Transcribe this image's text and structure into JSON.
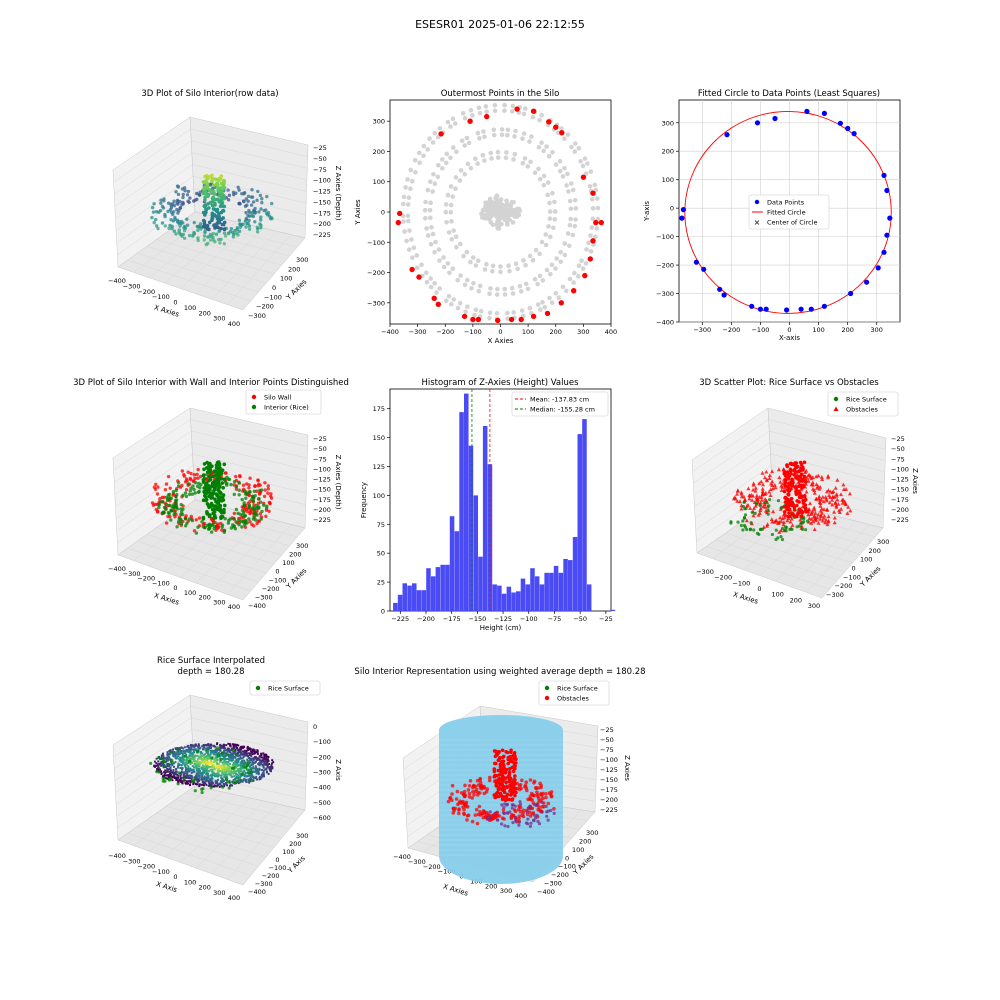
{
  "figure": {
    "title": "ESESR01 2025-01-06 22:12:55"
  },
  "colors": {
    "gray": "#d3d3d3",
    "red": "#ff0000",
    "blue": "#0000ff",
    "green": "#008000",
    "hist": "#4b4bf5",
    "sky": "#87ceeb",
    "pane": "#f2f2f2",
    "grid": "#dcdcdc"
  },
  "chart_data": [
    {
      "id": "p1",
      "type": "scatter3d",
      "title": "3D Plot of Silo Interior(row data)",
      "xlabel": "X Axies",
      "ylabel": "Y Axies",
      "zlabel": "Z Axies (Depth)",
      "xticks": [
        "−400",
        "−300",
        "−200",
        "−100",
        "0",
        "100",
        "200",
        "300",
        "400"
      ],
      "yticks": [
        "−300",
        "−200",
        "−100",
        "0",
        "100",
        "200",
        "300"
      ],
      "zticks": [
        "−25",
        "−50",
        "−75",
        "−100",
        "−125",
        "−150",
        "−175",
        "−200",
        "−225"
      ],
      "colormap": "viridis"
    },
    {
      "id": "p2",
      "type": "scatter",
      "title": "Outermost Points in the Silo",
      "xlabel": "X Axies",
      "ylabel": "Y Axies",
      "xlim": [
        -400,
        400
      ],
      "ylim": [
        -370,
        370
      ],
      "xticks": [
        -400,
        -300,
        -200,
        -100,
        0,
        100,
        200,
        300,
        400
      ],
      "yticks": [
        -300,
        -200,
        -100,
        0,
        100,
        200,
        300
      ],
      "series": [
        {
          "color": "#d3d3d3",
          "description_rings": [
            180,
            255,
            335
          ]
        },
        {
          "color": "#ff0000",
          "points": [
            [
              60,
              340
            ],
            [
              120,
              333
            ],
            [
              175,
              298
            ],
            [
              200,
              280
            ],
            [
              222,
              262
            ],
            [
              -215,
              258
            ],
            [
              -110,
              300
            ],
            [
              -50,
              315
            ],
            [
              300,
              115
            ],
            [
              335,
              62
            ],
            [
              345,
              -35
            ],
            [
              365,
              -35
            ],
            [
              335,
              -95
            ],
            [
              -365,
              -5
            ],
            [
              -370,
              -35
            ],
            [
              325,
              -155
            ],
            [
              -320,
              -190
            ],
            [
              -295,
              -215
            ],
            [
              305,
              -210
            ],
            [
              265,
              -260
            ],
            [
              -240,
              -285
            ],
            [
              220,
              -300
            ],
            [
              -225,
              -305
            ],
            [
              -130,
              -345
            ],
            [
              -100,
              -355
            ],
            [
              -80,
              -355
            ],
            [
              -10,
              -358
            ],
            [
              40,
              -355
            ],
            [
              75,
              -355
            ],
            [
              120,
              -345
            ],
            [
              170,
              -335
            ]
          ]
        }
      ]
    },
    {
      "id": "p3",
      "type": "scatter",
      "title": "Fitted Circle to Data Points (Least Squares)",
      "xlabel": "X-axis",
      "ylabel": "Y-axis",
      "xlim": [
        -380,
        380
      ],
      "ylim": [
        -400,
        380
      ],
      "xticks": [
        -300,
        -200,
        -100,
        0,
        100,
        200,
        300
      ],
      "yticks": [
        -400,
        -300,
        -200,
        -100,
        0,
        100,
        200,
        300
      ],
      "circle": {
        "cx": -5,
        "cy": -15,
        "r": 355
      },
      "legend": [
        "Data Points",
        "Fitted Circle",
        "Center of Circle"
      ],
      "points": [
        [
          60,
          340
        ],
        [
          120,
          333
        ],
        [
          175,
          298
        ],
        [
          200,
          280
        ],
        [
          222,
          262
        ],
        [
          -215,
          258
        ],
        [
          -110,
          300
        ],
        [
          -50,
          315
        ],
        [
          325,
          115
        ],
        [
          335,
          62
        ],
        [
          345,
          -35
        ],
        [
          -365,
          -5
        ],
        [
          -370,
          -35
        ],
        [
          335,
          -95
        ],
        [
          325,
          -155
        ],
        [
          -320,
          -190
        ],
        [
          -295,
          -215
        ],
        [
          305,
          -210
        ],
        [
          265,
          -260
        ],
        [
          -240,
          -285
        ],
        [
          210,
          -300
        ],
        [
          -225,
          -305
        ],
        [
          -130,
          -345
        ],
        [
          -100,
          -355
        ],
        [
          -80,
          -355
        ],
        [
          -10,
          -358
        ],
        [
          40,
          -355
        ],
        [
          75,
          -355
        ],
        [
          120,
          -345
        ]
      ]
    },
    {
      "id": "p4",
      "type": "scatter3d",
      "title": "3D Plot of Silo Interior with Wall and Interior Points Distinguished",
      "xlabel": "X Axies",
      "ylabel": "Y Axies",
      "zlabel": "Z Axies (Depth)",
      "xticks": [
        "−400",
        "−300",
        "−200",
        "−100",
        "0",
        "100",
        "200",
        "300",
        "400"
      ],
      "yticks": [
        "−400",
        "−300",
        "−200",
        "−100",
        "0",
        "100",
        "200",
        "300"
      ],
      "zticks": [
        "−25",
        "−50",
        "−75",
        "−100",
        "−125",
        "−150",
        "−175",
        "−200",
        "−225"
      ],
      "legend": [
        "Silo Wall",
        "Interior (Rice)"
      ]
    },
    {
      "id": "p5",
      "type": "bar",
      "title": "Histogram of Z-Axies (Height) Values",
      "xlabel": "Height (cm)",
      "ylabel": "Frequency",
      "xlim": [
        -235,
        -20
      ],
      "ylim": [
        0,
        192
      ],
      "xticks": [
        -225,
        -200,
        -175,
        -150,
        -125,
        -100,
        -75,
        -50,
        -25
      ],
      "yticks": [
        0,
        25,
        50,
        75,
        100,
        125,
        150,
        175
      ],
      "bin_start": -232,
      "bin_width": 4.6,
      "values": [
        7,
        14,
        24,
        22,
        24,
        18,
        18,
        37,
        30,
        38,
        40,
        40,
        82,
        69,
        172,
        188,
        143,
        100,
        47,
        160,
        127,
        23,
        22,
        15,
        21,
        16,
        17,
        28,
        23,
        37,
        30,
        23,
        33,
        33,
        39,
        33,
        45,
        44,
        64,
        153,
        166,
        23,
        0,
        0,
        0,
        0,
        1
      ],
      "mean": -137.83,
      "median": -155.28,
      "legend": [
        "Mean: -137.83 cm",
        "Median: -155.28 cm"
      ]
    },
    {
      "id": "p6",
      "type": "scatter3d",
      "title": "3D Scatter Plot: Rice Surface vs Obstacles",
      "xlabel": "X Axies",
      "ylabel": "Y Axies",
      "zlabel": "Z Axies",
      "xticks": [
        "−300",
        "−200",
        "−100",
        "0",
        "100",
        "200",
        "300"
      ],
      "yticks": [
        "−300",
        "−200",
        "−100",
        "0",
        "100",
        "200",
        "300"
      ],
      "zticks": [
        "−25",
        "−50",
        "−75",
        "−100",
        "−125",
        "−150",
        "−175",
        "−200",
        "−225"
      ],
      "legend": [
        "Rice Surface",
        "Obstacles"
      ]
    },
    {
      "id": "p7",
      "type": "surface3d",
      "title": "Rice Surface Interpolated",
      "subtitle": "depth = 180.28",
      "xlabel": "X Axis",
      "ylabel": "Y Axis",
      "zlabel": "Z Axis",
      "xticks": [
        "−400",
        "−300",
        "−200",
        "−100",
        "0",
        "100",
        "200",
        "300",
        "400"
      ],
      "yticks": [
        "−400",
        "−300",
        "−200",
        "−100",
        "0",
        "100",
        "200",
        "300"
      ],
      "zticks": [
        "0",
        "−100",
        "−200",
        "−300",
        "−400",
        "−500",
        "−600"
      ],
      "legend": [
        "Rice Surface"
      ]
    },
    {
      "id": "p8",
      "type": "scatter3d",
      "title": "Silo Interior Representation using weighted average depth = 180.28",
      "xlabel": "X Axies",
      "ylabel": "Y Axies",
      "zlabel": "Z Axies",
      "xticks": [
        "−400",
        "−300",
        "−200",
        "−100",
        "0",
        "100",
        "200",
        "300",
        "400"
      ],
      "yticks": [
        "−400",
        "−300",
        "−200",
        "−100",
        "0",
        "100",
        "200",
        "300"
      ],
      "zticks": [
        "−25",
        "−50",
        "−75",
        "−100",
        "−125",
        "−150",
        "−175",
        "−200",
        "−225"
      ],
      "legend": [
        "Rice Surface",
        "Obstacles"
      ]
    }
  ]
}
